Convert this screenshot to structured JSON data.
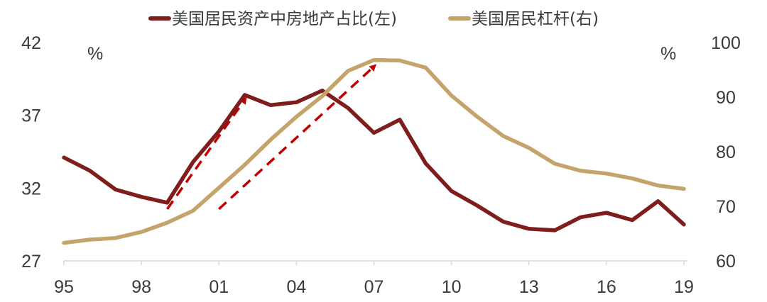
{
  "chart_data": {
    "type": "line",
    "x": [
      "95",
      "96",
      "97",
      "98",
      "99",
      "00",
      "01",
      "02",
      "03",
      "04",
      "05",
      "06",
      "07",
      "08",
      "09",
      "10",
      "11",
      "12",
      "13",
      "14",
      "15",
      "16",
      "17",
      "18",
      "19"
    ],
    "x_tick_labels": [
      "95",
      "98",
      "01",
      "04",
      "07",
      "10",
      "13",
      "16",
      "19"
    ],
    "left_axis": {
      "ylim": [
        27,
        42
      ],
      "ticks": [
        "27",
        "32",
        "37",
        "42"
      ],
      "unit": "%"
    },
    "right_axis": {
      "ylim": [
        60,
        100
      ],
      "ticks": [
        "60",
        "70",
        "80",
        "90",
        "100"
      ],
      "unit": "%"
    },
    "series": [
      {
        "name": "美国居民资产中房地产占比(左)",
        "axis": "left",
        "color": "#7f1d1d",
        "values": [
          34.1,
          33.2,
          31.9,
          31.4,
          31.0,
          33.8,
          35.9,
          38.4,
          37.7,
          37.9,
          38.7,
          37.5,
          35.8,
          36.7,
          33.7,
          31.8,
          30.8,
          29.7,
          29.2,
          29.1,
          30.0,
          30.3,
          29.8,
          31.1,
          29.5
        ]
      },
      {
        "name": "美国居民杠杆(右)",
        "axis": "right",
        "color": "#c4a46b",
        "values": [
          63.3,
          63.9,
          64.2,
          65.3,
          67.0,
          69.2,
          73.4,
          77.6,
          82.2,
          86.4,
          90.2,
          94.8,
          96.8,
          96.7,
          95.4,
          90.3,
          86.4,
          82.9,
          80.7,
          77.8,
          76.5,
          76.0,
          75.1,
          73.8,
          73.2
        ]
      }
    ],
    "annotations": [
      {
        "type": "arrow",
        "style": "dashed",
        "color": "#c00000",
        "from": [
          "99",
          69.5
        ],
        "to": [
          "02",
          89.5
        ],
        "axis": "right"
      },
      {
        "type": "arrow",
        "style": "dashed",
        "color": "#c00000",
        "from": [
          "01",
          69.5
        ],
        "to": [
          "07",
          95.6
        ],
        "axis": "right"
      }
    ]
  }
}
